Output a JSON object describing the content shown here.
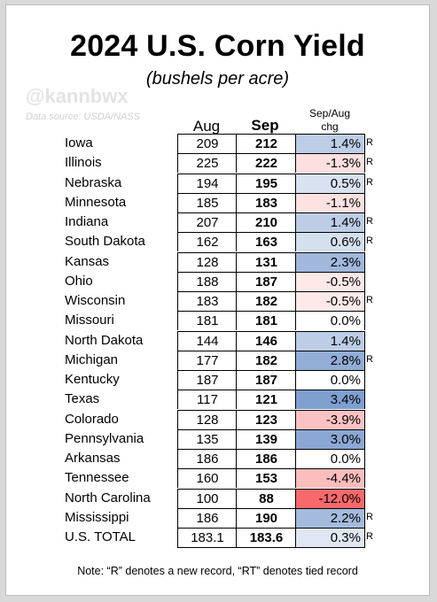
{
  "title": "2024 U.S. Corn Yield",
  "subtitle": "(bushels per acre)",
  "watermark": "@kannbwx",
  "source": "Data source: USDA/NASS",
  "headers": {
    "aug": "Aug",
    "sep": "Sep",
    "chg_line1": "Sep/Aug",
    "chg_line2": "chg"
  },
  "note": "Note: “R” denotes a new record, “RT” denotes tied record",
  "colors": {
    "positive_max": "#7f9fcf",
    "negative_max": "#f8696b",
    "neutral": "#ffffff"
  },
  "chart_data": {
    "type": "table",
    "title": "2024 U.S. Corn Yield",
    "subtitle": "(bushels per acre)",
    "columns": [
      "Aug",
      "Sep",
      "Sep/Aug chg"
    ],
    "rows": [
      {
        "state": "Iowa",
        "aug": "209",
        "sep": "212",
        "chg": "1.4%",
        "chg_value": 1.4,
        "flag": "R"
      },
      {
        "state": "Illinois",
        "aug": "225",
        "sep": "222",
        "chg": "-1.3%",
        "chg_value": -1.3,
        "flag": "R"
      },
      {
        "state": "Nebraska",
        "aug": "194",
        "sep": "195",
        "chg": "0.5%",
        "chg_value": 0.5,
        "flag": "R"
      },
      {
        "state": "Minnesota",
        "aug": "185",
        "sep": "183",
        "chg": "-1.1%",
        "chg_value": -1.1,
        "flag": ""
      },
      {
        "state": "Indiana",
        "aug": "207",
        "sep": "210",
        "chg": "1.4%",
        "chg_value": 1.4,
        "flag": "R"
      },
      {
        "state": "South Dakota",
        "aug": "162",
        "sep": "163",
        "chg": "0.6%",
        "chg_value": 0.6,
        "flag": "R"
      },
      {
        "state": "Kansas",
        "aug": "128",
        "sep": "131",
        "chg": "2.3%",
        "chg_value": 2.3,
        "flag": ""
      },
      {
        "state": "Ohio",
        "aug": "188",
        "sep": "187",
        "chg": "-0.5%",
        "chg_value": -0.5,
        "flag": ""
      },
      {
        "state": "Wisconsin",
        "aug": "183",
        "sep": "182",
        "chg": "-0.5%",
        "chg_value": -0.5,
        "flag": "R"
      },
      {
        "state": "Missouri",
        "aug": "181",
        "sep": "181",
        "chg": "0.0%",
        "chg_value": 0.0,
        "flag": ""
      },
      {
        "state": "North Dakota",
        "aug": "144",
        "sep": "146",
        "chg": "1.4%",
        "chg_value": 1.4,
        "flag": ""
      },
      {
        "state": "Michigan",
        "aug": "177",
        "sep": "182",
        "chg": "2.8%",
        "chg_value": 2.8,
        "flag": "R"
      },
      {
        "state": "Kentucky",
        "aug": "187",
        "sep": "187",
        "chg": "0.0%",
        "chg_value": 0.0,
        "flag": ""
      },
      {
        "state": "Texas",
        "aug": "117",
        "sep": "121",
        "chg": "3.4%",
        "chg_value": 3.4,
        "flag": ""
      },
      {
        "state": "Colorado",
        "aug": "128",
        "sep": "123",
        "chg": "-3.9%",
        "chg_value": -3.9,
        "flag": ""
      },
      {
        "state": "Pennsylvania",
        "aug": "135",
        "sep": "139",
        "chg": "3.0%",
        "chg_value": 3.0,
        "flag": ""
      },
      {
        "state": "Arkansas",
        "aug": "186",
        "sep": "186",
        "chg": "0.0%",
        "chg_value": 0.0,
        "flag": ""
      },
      {
        "state": "Tennessee",
        "aug": "160",
        "sep": "153",
        "chg": "-4.4%",
        "chg_value": -4.4,
        "flag": ""
      },
      {
        "state": "North Carolina",
        "aug": "100",
        "sep": "88",
        "chg": "-12.0%",
        "chg_value": -12.0,
        "flag": ""
      },
      {
        "state": "Mississippi",
        "aug": "186",
        "sep": "190",
        "chg": "2.2%",
        "chg_value": 2.2,
        "flag": "R"
      },
      {
        "state": "U.S. TOTAL",
        "aug": "183.1",
        "sep": "183.6",
        "chg": "0.3%",
        "chg_value": 0.3,
        "flag": "R"
      }
    ]
  }
}
